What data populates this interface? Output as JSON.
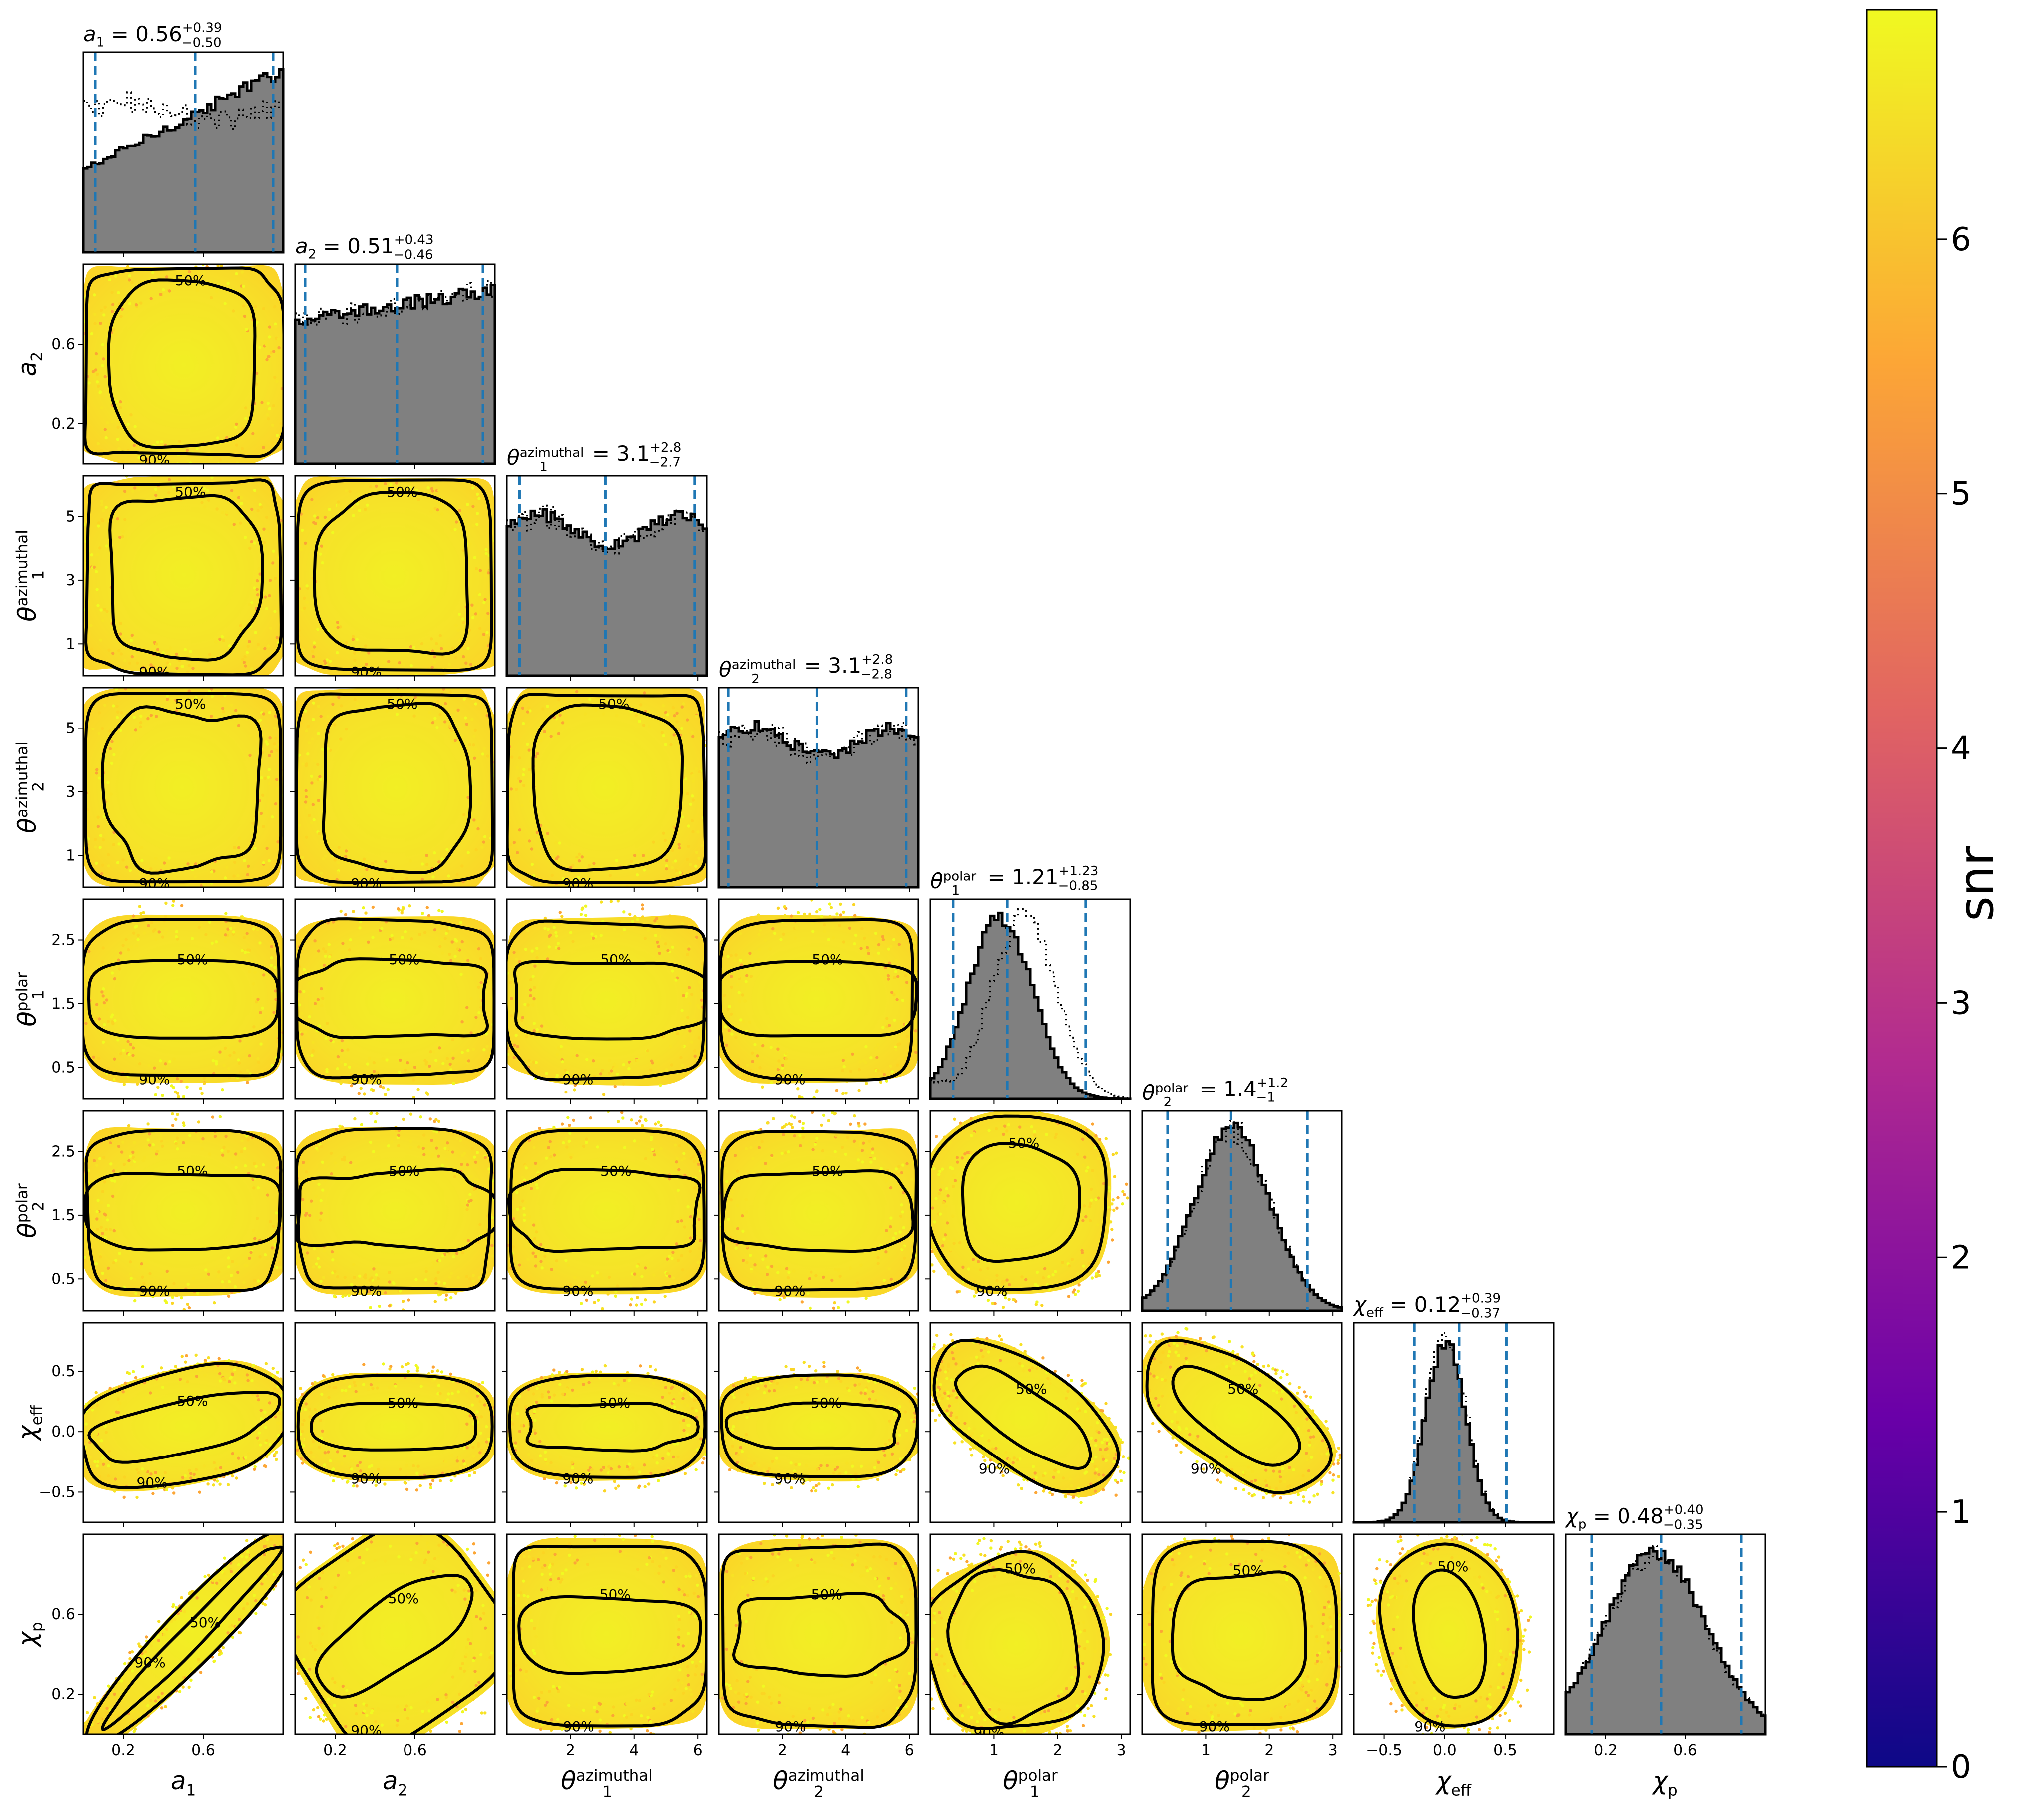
{
  "chart_data": {
    "type": "scatter",
    "kind": "corner-plot",
    "parameters": [
      {
        "key": "a1",
        "label": "a",
        "sub": "1",
        "sup": "",
        "range": [
          0,
          1
        ],
        "ticks": [
          0.2,
          0.6
        ],
        "title": {
          "median": "0.56",
          "plus": "+0.39",
          "minus": "−0.50"
        },
        "median": 0.56,
        "lower": 0.06,
        "upper": 0.95,
        "hist_shape": "rising"
      },
      {
        "key": "a2",
        "label": "a",
        "sub": "2",
        "sup": "",
        "range": [
          0,
          1
        ],
        "ticks": [
          0.2,
          0.6
        ],
        "title": {
          "median": "0.51",
          "plus": "+0.43",
          "minus": "−0.46"
        },
        "median": 0.51,
        "lower": 0.05,
        "upper": 0.94,
        "hist_shape": "flat-rising"
      },
      {
        "key": "theta1_az",
        "label": "θ",
        "sub": "1",
        "sup": "azimuthal",
        "range": [
          0,
          6.28
        ],
        "ticks": [
          1,
          3,
          5
        ],
        "xticks": [
          2,
          4,
          6
        ],
        "title": {
          "median": "3.1",
          "plus": "+2.8",
          "minus": "−2.7"
        },
        "median": 3.1,
        "lower": 0.4,
        "upper": 5.9,
        "hist_shape": "flat"
      },
      {
        "key": "theta2_az",
        "label": "θ",
        "sub": "2",
        "sup": "azimuthal",
        "range": [
          0,
          6.28
        ],
        "ticks": [
          1,
          3,
          5
        ],
        "xticks": [
          2,
          4,
          6
        ],
        "title": {
          "median": "3.1",
          "plus": "+2.8",
          "minus": "−2.8"
        },
        "median": 3.1,
        "lower": 0.3,
        "upper": 5.9,
        "hist_shape": "flat"
      },
      {
        "key": "theta1_polar",
        "label": "θ",
        "sub": "1",
        "sup": "polar",
        "range": [
          0,
          3.14
        ],
        "ticks": [
          0.5,
          1.5,
          2.5
        ],
        "xticks": [
          1,
          2,
          3
        ],
        "title": {
          "median": "1.21",
          "plus": "+1.23",
          "minus": "−0.85"
        },
        "median": 1.21,
        "lower": 0.36,
        "upper": 2.44,
        "hist_shape": "peak-low"
      },
      {
        "key": "theta2_polar",
        "label": "θ",
        "sub": "2",
        "sup": "polar",
        "range": [
          0,
          3.14
        ],
        "ticks": [
          0.5,
          1.5,
          2.5
        ],
        "xticks": [
          1,
          2,
          3
        ],
        "title": {
          "median": "1.4",
          "plus": "+1.2",
          "minus": "−1"
        },
        "median": 1.4,
        "lower": 0.4,
        "upper": 2.6,
        "hist_shape": "peak-mid"
      },
      {
        "key": "chi_eff",
        "label": "χ",
        "sub": "eff",
        "sup": "",
        "range": [
          -0.75,
          0.9
        ],
        "ticks": [
          -0.5,
          0.0,
          0.5
        ],
        "xticks": [
          -0.5,
          0.0,
          0.5
        ],
        "title": {
          "median": "0.12",
          "plus": "+0.39",
          "minus": "−0.37"
        },
        "median": 0.12,
        "lower": -0.25,
        "upper": 0.51,
        "hist_shape": "sharp-peak"
      },
      {
        "key": "chi_p",
        "label": "χ",
        "sub": "p",
        "sup": "",
        "range": [
          0,
          1
        ],
        "ticks": [
          0.2,
          0.6
        ],
        "title": {
          "median": "0.48",
          "plus": "+0.40",
          "minus": "−0.35"
        },
        "median": 0.48,
        "lower": 0.13,
        "upper": 0.88,
        "hist_shape": "broad"
      }
    ],
    "tick_labels_text": {
      "a": [
        "0.2",
        "0.6"
      ],
      "az_y": [
        "1",
        "3",
        "5"
      ],
      "az_x": [
        "2",
        "4",
        "6"
      ],
      "polar_y": [
        "0.5",
        "1.5",
        "2.5"
      ],
      "polar_x": [
        "1",
        "2",
        "3"
      ],
      "chi_eff": [
        "−0.5",
        "0.0",
        "0.5"
      ]
    },
    "contour_labels": [
      "50%",
      "90%"
    ],
    "hist_fill_color": "#808080",
    "quantile_line_color": "#1f77b4",
    "colorbar": {
      "label": "snr",
      "range": [
        0,
        6.9
      ],
      "ticks": [
        "0",
        "1",
        "2",
        "3",
        "4",
        "5",
        "6"
      ],
      "colormap": "plasma",
      "colors": [
        "#0d0887",
        "#6a00a8",
        "#b12a90",
        "#e16462",
        "#fca636",
        "#f0f921"
      ]
    },
    "point_colors": [
      "#f0f921",
      "#fbd524",
      "#fca636",
      "#f7e225"
    ]
  }
}
